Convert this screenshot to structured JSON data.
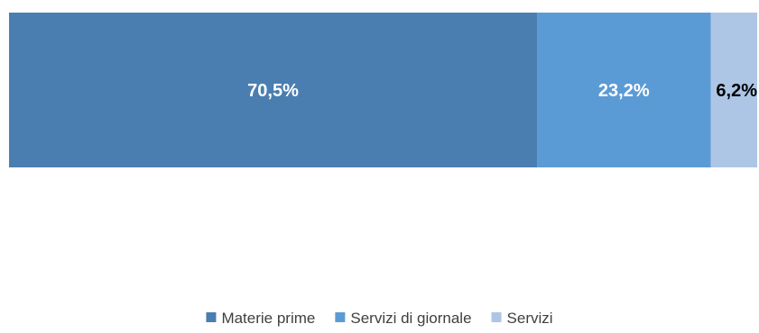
{
  "chart_data": {
    "type": "bar",
    "orientation": "horizontal-stacked-100",
    "categories": [
      ""
    ],
    "series": [
      {
        "name": "Materie prime",
        "values": [
          70.5
        ],
        "label": "70,5%",
        "color": "#4a7eb0",
        "label_color": "#ffffff"
      },
      {
        "name": "Servizi di giornale",
        "values": [
          23.2
        ],
        "label": "23,2%",
        "color": "#5b9bd5",
        "label_color": "#ffffff"
      },
      {
        "name": "Servizi",
        "values": [
          6.2
        ],
        "label": "6,2%",
        "color": "#adc6e5",
        "label_color": "#000000"
      }
    ],
    "xlim": [
      0,
      100
    ],
    "grid": false,
    "legend_position": "bottom"
  }
}
